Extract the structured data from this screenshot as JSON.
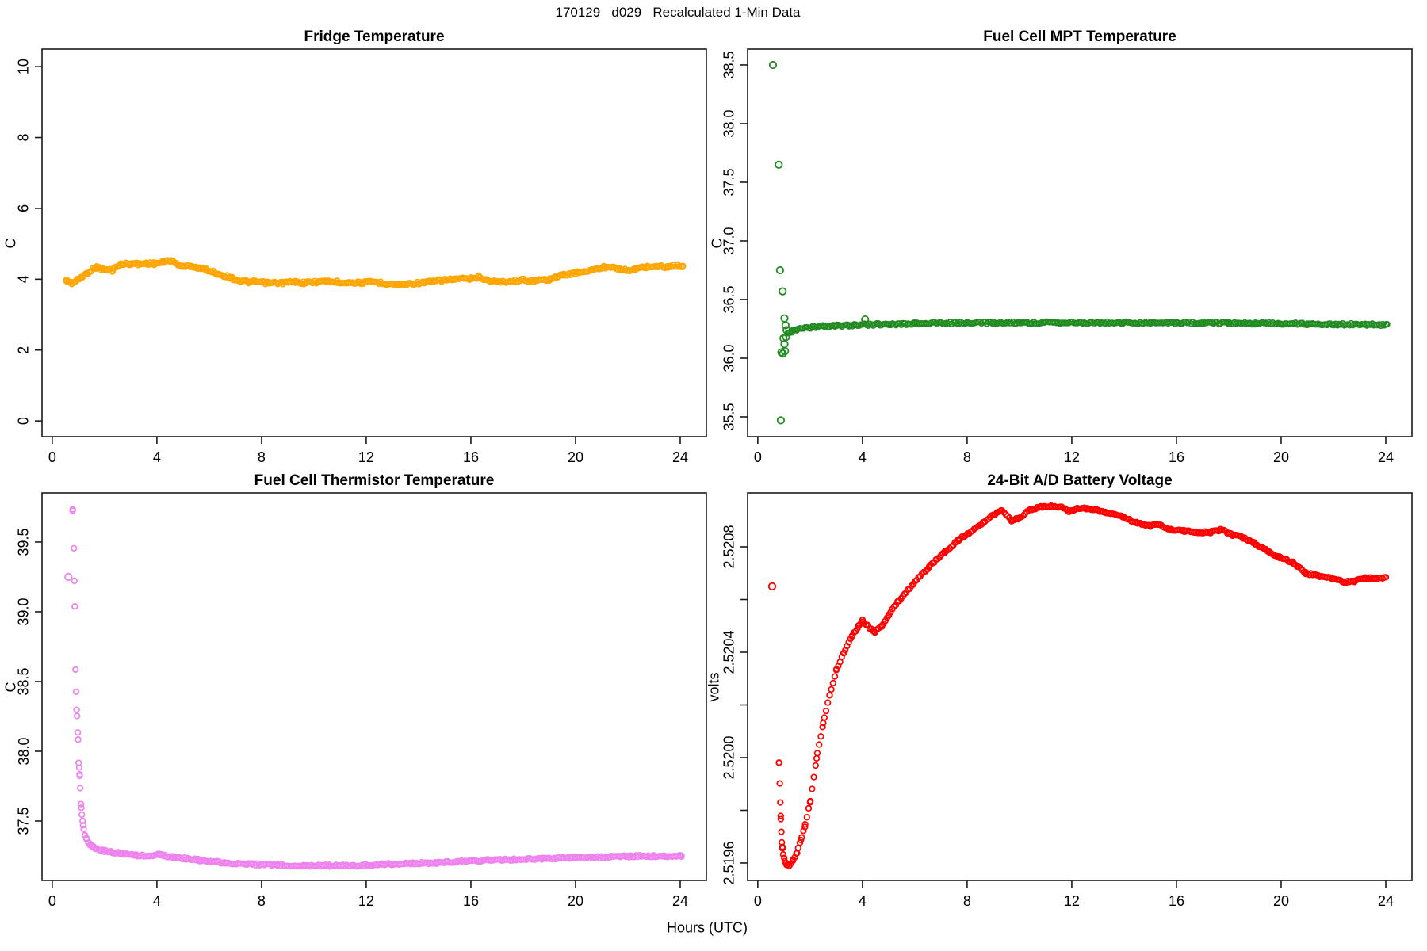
{
  "figure": {
    "title": "170129   d029   Recalculated 1-Min Data",
    "xlabel": "Hours (UTC)"
  },
  "chart_data": [
    {
      "id": "fridge-temperature",
      "type": "scatter",
      "title": "Fridge Temperature",
      "ylabel": "C",
      "color": "#FFA500",
      "xlim": [
        -0.39,
        25.0
      ],
      "ylim": [
        -0.445,
        10.495
      ],
      "xticks": {
        "values": [
          0,
          4,
          8,
          12,
          16,
          20,
          24
        ],
        "labels": [
          "0",
          "4",
          "8",
          "12",
          "16",
          "20",
          "24"
        ]
      },
      "yticks": {
        "values": [
          0,
          2,
          4,
          6,
          8,
          10
        ],
        "labels": [
          "0",
          "2",
          "4",
          "6",
          "8",
          "10"
        ]
      },
      "keypoints": [
        [
          0.55,
          3.96
        ],
        [
          0.65,
          3.92
        ],
        [
          0.75,
          3.89
        ],
        [
          0.9,
          3.94
        ],
        [
          1.1,
          4.05
        ],
        [
          1.3,
          4.15
        ],
        [
          1.5,
          4.26
        ],
        [
          1.7,
          4.34
        ],
        [
          1.9,
          4.29
        ],
        [
          2.1,
          4.26
        ],
        [
          2.3,
          4.25
        ],
        [
          2.5,
          4.38
        ],
        [
          2.7,
          4.43
        ],
        [
          3.0,
          4.44
        ],
        [
          3.3,
          4.43
        ],
        [
          3.6,
          4.45
        ],
        [
          3.9,
          4.44
        ],
        [
          4.2,
          4.47
        ],
        [
          4.5,
          4.53
        ],
        [
          4.8,
          4.42
        ],
        [
          5.0,
          4.35
        ],
        [
          5.3,
          4.38
        ],
        [
          5.6,
          4.31
        ],
        [
          5.9,
          4.27
        ],
        [
          6.3,
          4.16
        ],
        [
          6.8,
          4.05
        ],
        [
          7.2,
          3.95
        ],
        [
          7.5,
          3.92
        ],
        [
          7.8,
          3.92
        ],
        [
          8.3,
          3.89
        ],
        [
          8.8,
          3.9
        ],
        [
          9.3,
          3.92
        ],
        [
          9.6,
          3.9
        ],
        [
          10.1,
          3.92
        ],
        [
          10.5,
          3.94
        ],
        [
          10.9,
          3.92
        ],
        [
          11.3,
          3.91
        ],
        [
          11.8,
          3.9
        ],
        [
          12.3,
          3.92
        ],
        [
          12.8,
          3.88
        ],
        [
          13.2,
          3.84
        ],
        [
          13.8,
          3.88
        ],
        [
          14.4,
          3.92
        ],
        [
          15.0,
          3.98
        ],
        [
          15.4,
          4.0
        ],
        [
          16.0,
          4.01
        ],
        [
          16.3,
          4.07
        ],
        [
          16.6,
          3.98
        ],
        [
          17.0,
          3.92
        ],
        [
          17.5,
          3.94
        ],
        [
          18.0,
          3.98
        ],
        [
          18.4,
          3.95
        ],
        [
          19.0,
          4.0
        ],
        [
          19.5,
          4.11
        ],
        [
          20.0,
          4.18
        ],
        [
          20.6,
          4.25
        ],
        [
          21.1,
          4.34
        ],
        [
          21.4,
          4.36
        ],
        [
          21.7,
          4.29
        ],
        [
          22.0,
          4.24
        ],
        [
          22.3,
          4.29
        ],
        [
          22.7,
          4.35
        ],
        [
          23.1,
          4.36
        ],
        [
          23.5,
          4.35
        ],
        [
          23.9,
          4.39
        ],
        [
          24.1,
          4.37
        ]
      ],
      "outliers": []
    },
    {
      "id": "fuel-cell-mpt-temperature",
      "type": "scatter",
      "title": "Fuel Cell MPT Temperature",
      "ylabel": "C",
      "color": "#228B22",
      "xlim": [
        -0.39,
        25.0
      ],
      "ylim": [
        35.331,
        38.635
      ],
      "xticks": {
        "values": [
          0,
          4,
          8,
          12,
          16,
          20,
          24
        ],
        "labels": [
          "0",
          "4",
          "8",
          "12",
          "16",
          "20",
          "24"
        ]
      },
      "yticks": {
        "values": [
          35.5,
          36.0,
          36.5,
          37.0,
          37.5,
          38.0,
          38.5
        ],
        "labels": [
          "35.5",
          "36.0",
          "36.5",
          "37.0",
          "37.5",
          "38.0",
          "38.5"
        ]
      },
      "keypoints": [
        [
          1.15,
          36.21
        ],
        [
          1.3,
          36.23
        ],
        [
          1.5,
          36.245
        ],
        [
          2.0,
          36.26
        ],
        [
          2.5,
          36.27
        ],
        [
          3.0,
          36.275
        ],
        [
          3.5,
          36.28
        ],
        [
          4.0,
          36.285
        ],
        [
          5.0,
          36.29
        ],
        [
          6.0,
          36.295
        ],
        [
          7.0,
          36.3
        ],
        [
          8.0,
          36.3
        ],
        [
          9.0,
          36.302
        ],
        [
          10.0,
          36.303
        ],
        [
          11.0,
          36.303
        ],
        [
          12.0,
          36.303
        ],
        [
          13.0,
          36.303
        ],
        [
          14.0,
          36.303
        ],
        [
          15.0,
          36.302
        ],
        [
          16.0,
          36.301
        ],
        [
          17.0,
          36.3
        ],
        [
          18.0,
          36.3
        ],
        [
          19.0,
          36.298
        ],
        [
          20.0,
          36.295
        ],
        [
          21.0,
          36.293
        ],
        [
          22.0,
          36.29
        ],
        [
          23.0,
          36.287
        ],
        [
          24.05,
          36.285
        ]
      ],
      "outliers": [
        [
          0.58,
          38.5
        ],
        [
          0.8,
          37.65
        ],
        [
          0.85,
          36.75
        ],
        [
          0.95,
          36.57
        ],
        [
          1.02,
          36.34
        ],
        [
          1.06,
          36.28
        ],
        [
          1.1,
          36.24
        ],
        [
          0.98,
          36.17
        ],
        [
          1.02,
          36.12
        ],
        [
          0.9,
          36.05
        ],
        [
          0.96,
          36.04
        ],
        [
          1.04,
          36.06
        ],
        [
          1.08,
          36.18
        ],
        [
          0.88,
          35.47
        ],
        [
          4.1,
          36.33
        ]
      ]
    },
    {
      "id": "fuel-cell-thermistor-temperature",
      "type": "scatter",
      "title": "Fuel Cell Thermistor Temperature",
      "ylabel": "C",
      "color": "#EE82EE",
      "xlim": [
        -0.39,
        25.0
      ],
      "ylim": [
        37.074,
        39.852
      ],
      "xticks": {
        "values": [
          0,
          4,
          8,
          12,
          16,
          20,
          24
        ],
        "labels": [
          "0",
          "4",
          "8",
          "12",
          "16",
          "20",
          "24"
        ]
      },
      "yticks": {
        "values": [
          37.5,
          38.0,
          38.5,
          39.0,
          39.5
        ],
        "labels": [
          "37.5",
          "38.0",
          "38.5",
          "39.0",
          "39.5"
        ]
      },
      "keypoints": [
        [
          0.78,
          39.73
        ],
        [
          0.83,
          39.45
        ],
        [
          0.86,
          39.04
        ],
        [
          0.89,
          38.59
        ],
        [
          0.93,
          38.3
        ],
        [
          0.95,
          38.25
        ],
        [
          0.99,
          38.09
        ],
        [
          1.01,
          37.92
        ],
        [
          1.03,
          37.88
        ],
        [
          1.05,
          37.83
        ],
        [
          1.07,
          37.73
        ],
        [
          1.1,
          37.62
        ],
        [
          1.13,
          37.55
        ],
        [
          1.16,
          37.5
        ],
        [
          1.2,
          37.44
        ],
        [
          1.25,
          37.4
        ],
        [
          1.31,
          37.37
        ],
        [
          1.4,
          37.34
        ],
        [
          1.52,
          37.32
        ],
        [
          1.7,
          37.3
        ],
        [
          2.0,
          37.285
        ],
        [
          2.3,
          37.275
        ],
        [
          2.6,
          37.27
        ],
        [
          3.2,
          37.255
        ],
        [
          3.7,
          37.25
        ],
        [
          4.1,
          37.26
        ],
        [
          4.6,
          37.24
        ],
        [
          5.6,
          37.22
        ],
        [
          6.6,
          37.2
        ],
        [
          7.6,
          37.19
        ],
        [
          8.6,
          37.185
        ],
        [
          9.6,
          37.18
        ],
        [
          10.6,
          37.18
        ],
        [
          11.6,
          37.18
        ],
        [
          12.1,
          37.185
        ],
        [
          12.6,
          37.19
        ],
        [
          13.7,
          37.195
        ],
        [
          14.7,
          37.2
        ],
        [
          15.7,
          37.21
        ],
        [
          16.7,
          37.22
        ],
        [
          17.7,
          37.225
        ],
        [
          18.7,
          37.23
        ],
        [
          19.7,
          37.235
        ],
        [
          20.7,
          37.24
        ],
        [
          21.7,
          37.245
        ],
        [
          22.7,
          37.25
        ],
        [
          23.4,
          37.245
        ],
        [
          24.05,
          37.25
        ]
      ],
      "outliers": [
        [
          0.62,
          39.25
        ]
      ]
    },
    {
      "id": "battery-voltage",
      "type": "scatter",
      "title": "24-Bit A/D Battery Voltage",
      "ylabel": "volts",
      "color": "#FF0000",
      "xlim": [
        -0.39,
        25.0
      ],
      "ylim": [
        2.5195338,
        2.5210045
      ],
      "xticks": {
        "values": [
          0,
          4,
          8,
          12,
          16,
          20,
          24
        ],
        "labels": [
          "0",
          "4",
          "8",
          "12",
          "16",
          "20",
          "24"
        ]
      },
      "yticks": {
        "values": [
          2.5196,
          2.5198,
          2.52,
          2.5202,
          2.5204,
          2.5206,
          2.5208
        ],
        "labels": [
          "2.5196",
          "",
          "2.5200",
          "",
          "2.5204",
          "",
          "2.5208"
        ]
      },
      "keypoints": [
        [
          0.81,
          2.51998
        ],
        [
          0.84,
          2.5199
        ],
        [
          0.86,
          2.51983
        ],
        [
          0.88,
          2.51977
        ],
        [
          0.9,
          2.51972
        ],
        [
          0.92,
          2.51968
        ],
        [
          0.94,
          2.51966
        ],
        [
          0.97,
          2.51963
        ],
        [
          1.03,
          2.51961
        ],
        [
          1.1,
          2.519595
        ],
        [
          1.2,
          2.51959
        ],
        [
          1.35,
          2.51961
        ],
        [
          1.5,
          2.51964
        ],
        [
          1.65,
          2.51969
        ],
        [
          1.8,
          2.51974
        ],
        [
          2.0,
          2.51983
        ],
        [
          2.25,
          2.52
        ],
        [
          2.5,
          2.52013
        ],
        [
          2.75,
          2.52024
        ],
        [
          3.0,
          2.52033
        ],
        [
          3.3,
          2.5204
        ],
        [
          3.6,
          2.52046
        ],
        [
          3.85,
          2.5205
        ],
        [
          4.0,
          2.52052
        ],
        [
          4.2,
          2.5205
        ],
        [
          4.45,
          2.520475
        ],
        [
          4.75,
          2.5205
        ],
        [
          5.0,
          2.52054
        ],
        [
          5.35,
          2.52059
        ],
        [
          5.95,
          2.52066
        ],
        [
          6.55,
          2.520725
        ],
        [
          7.15,
          2.52078
        ],
        [
          7.65,
          2.520825
        ],
        [
          8.2,
          2.52086
        ],
        [
          8.6,
          2.52089
        ],
        [
          9.0,
          2.52092
        ],
        [
          9.3,
          2.52094
        ],
        [
          9.7,
          2.5209
        ],
        [
          10.0,
          2.52091
        ],
        [
          10.4,
          2.52094
        ],
        [
          10.8,
          2.52095
        ],
        [
          11.2,
          2.520955
        ],
        [
          11.6,
          2.52095
        ],
        [
          11.9,
          2.520935
        ],
        [
          12.2,
          2.520945
        ],
        [
          12.6,
          2.520945
        ],
        [
          12.9,
          2.52094
        ],
        [
          13.3,
          2.52093
        ],
        [
          13.9,
          2.520915
        ],
        [
          14.5,
          2.52089
        ],
        [
          15.0,
          2.52088
        ],
        [
          15.3,
          2.520885
        ],
        [
          15.8,
          2.520865
        ],
        [
          16.3,
          2.52086
        ],
        [
          16.8,
          2.520855
        ],
        [
          17.3,
          2.520855
        ],
        [
          17.7,
          2.520865
        ],
        [
          18.15,
          2.520845
        ],
        [
          18.55,
          2.520835
        ],
        [
          18.95,
          2.520815
        ],
        [
          19.55,
          2.52078
        ],
        [
          19.95,
          2.52076
        ],
        [
          20.45,
          2.52074
        ],
        [
          20.95,
          2.5207
        ],
        [
          21.45,
          2.52069
        ],
        [
          21.95,
          2.52068
        ],
        [
          22.4,
          2.520665
        ],
        [
          22.8,
          2.52067
        ],
        [
          23.2,
          2.52068
        ],
        [
          23.6,
          2.52068
        ],
        [
          24.0,
          2.520685
        ]
      ],
      "outliers": [
        [
          0.55,
          2.52065
        ]
      ]
    }
  ]
}
